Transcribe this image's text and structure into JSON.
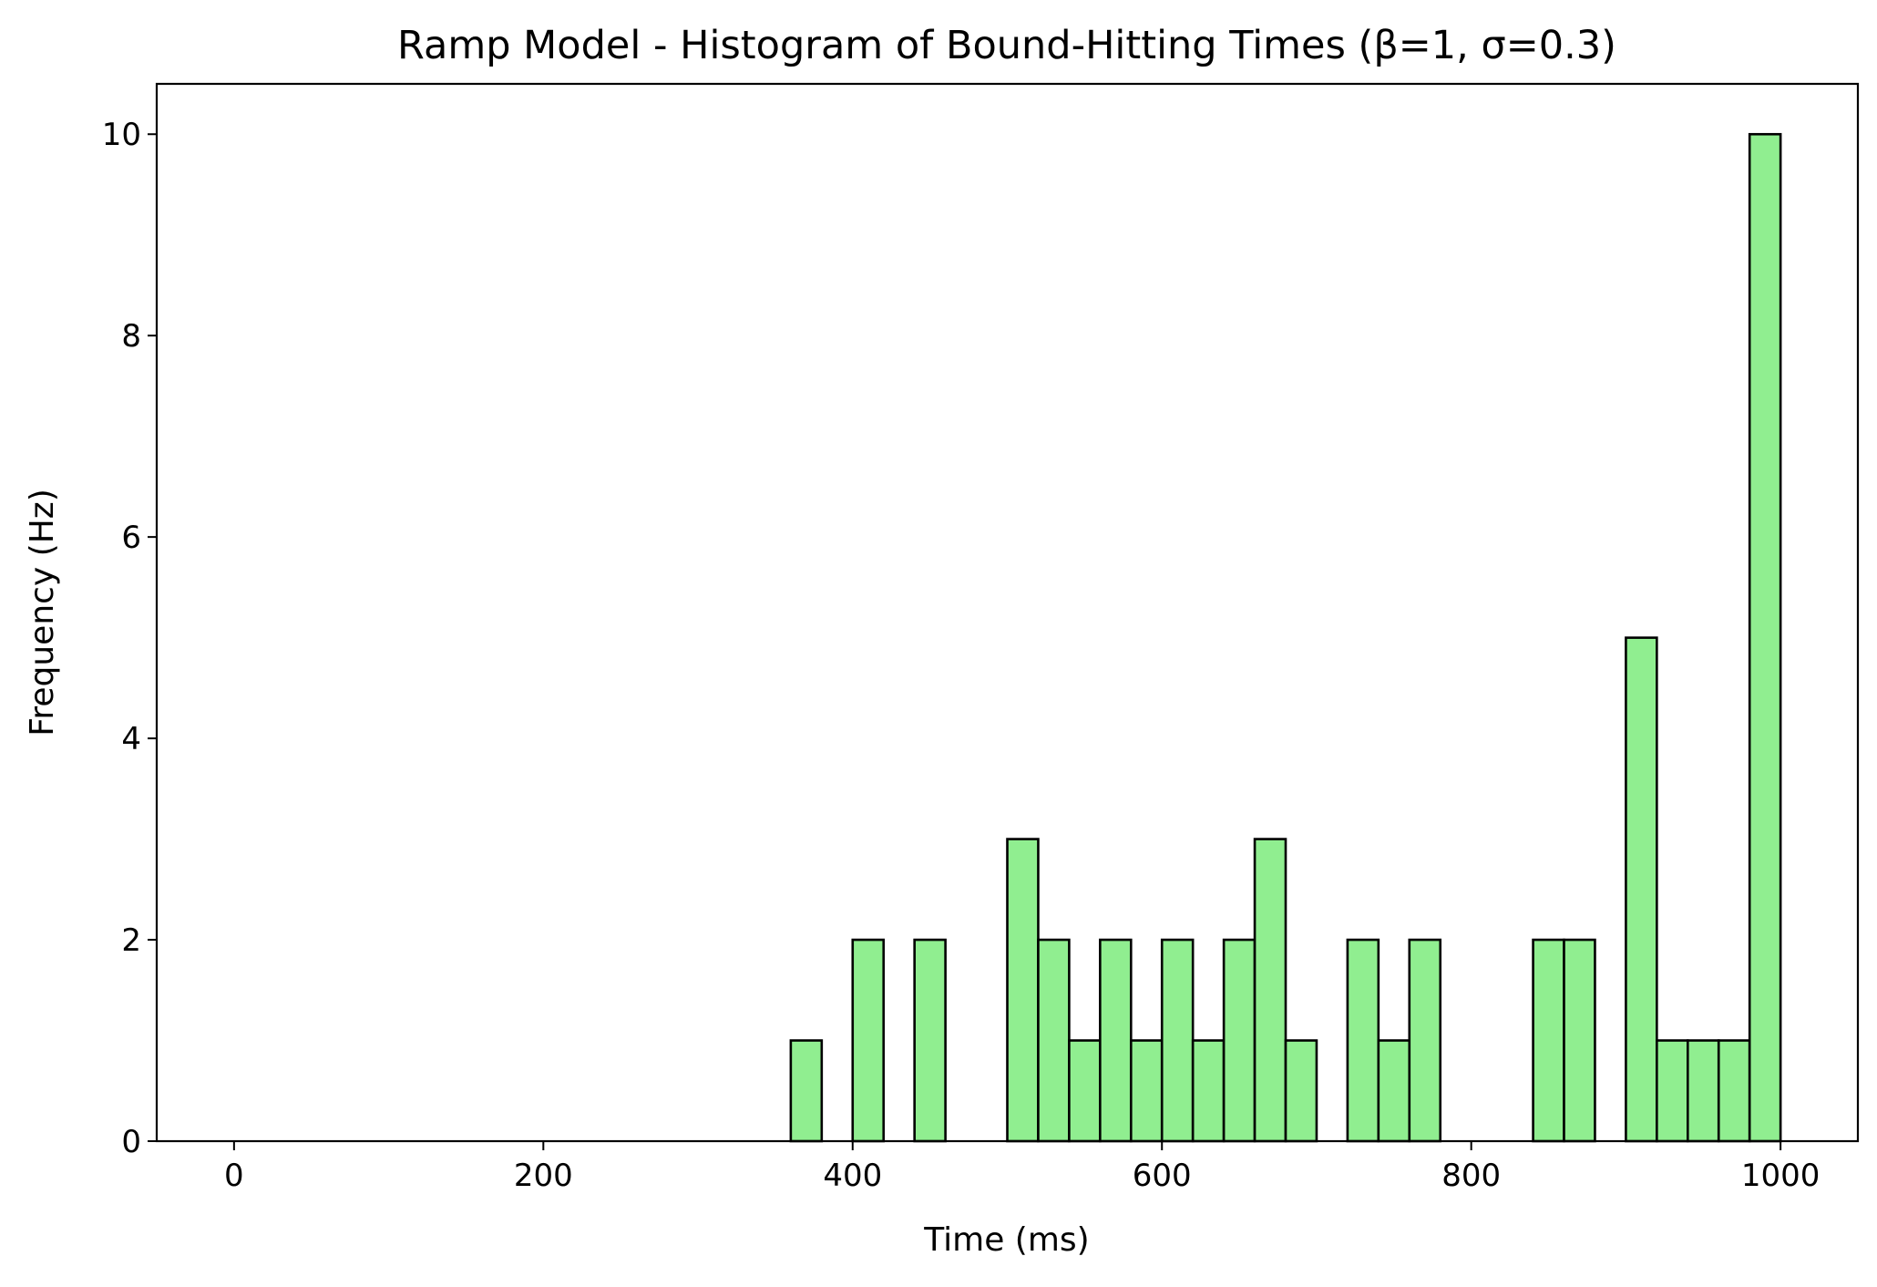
{
  "chart_data": {
    "type": "bar",
    "title": "Ramp Model - Histogram of Bound-Hitting Times (β=1, σ=0.3)",
    "xlabel": "Time (ms)",
    "ylabel": "Frequency (Hz)",
    "xlim": [
      -50,
      1050
    ],
    "ylim": [
      0,
      10.5
    ],
    "xticks": [
      0,
      200,
      400,
      600,
      800,
      1000
    ],
    "yticks": [
      0,
      2,
      4,
      6,
      8,
      10
    ],
    "bin_width": 20,
    "bin_starts": [
      0,
      20,
      40,
      60,
      80,
      100,
      120,
      140,
      160,
      180,
      200,
      220,
      240,
      260,
      280,
      300,
      320,
      340,
      360,
      380,
      400,
      420,
      440,
      460,
      480,
      500,
      520,
      540,
      560,
      580,
      600,
      620,
      640,
      660,
      680,
      700,
      720,
      740,
      760,
      780,
      800,
      820,
      840,
      860,
      880,
      900,
      920,
      940,
      960,
      980
    ],
    "values": [
      0,
      0,
      0,
      0,
      0,
      0,
      0,
      0,
      0,
      0,
      0,
      0,
      0,
      0,
      0,
      0,
      0,
      0,
      1,
      0,
      2,
      0,
      2,
      0,
      0,
      3,
      2,
      1,
      2,
      1,
      2,
      1,
      2,
      3,
      1,
      0,
      2,
      1,
      2,
      0,
      0,
      0,
      2,
      2,
      0,
      5,
      1,
      1,
      1,
      10
    ],
    "bar_color": "#90ee90",
    "edge_color": "#000000",
    "grid": false,
    "legend": false
  }
}
